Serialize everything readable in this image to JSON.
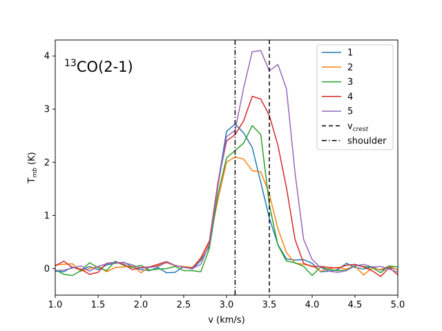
{
  "chart_data": {
    "type": "line",
    "annotation": {
      "sup": "13",
      "main": "CO(2-1)"
    },
    "xlabel": "v (km/s)",
    "ylabel": {
      "main": "T",
      "sub": "mb",
      "rest": " (K)"
    },
    "xlim": [
      1.0,
      5.0
    ],
    "ylim": [
      -0.5,
      4.3
    ],
    "xticks": [
      1.0,
      1.5,
      2.0,
      2.5,
      3.0,
      3.5,
      4.0,
      4.5,
      5.0
    ],
    "xtick_labels": [
      "1.0",
      "1.5",
      "2.0",
      "2.5",
      "3.0",
      "3.5",
      "4.0",
      "4.5",
      "5.0"
    ],
    "yticks": [
      0,
      1,
      2,
      3,
      4
    ],
    "ytick_labels": [
      "0",
      "1",
      "2",
      "3",
      "4"
    ],
    "x": [
      1.0,
      1.1,
      1.2,
      1.3,
      1.4,
      1.5,
      1.6,
      1.7,
      1.8,
      1.9,
      2.0,
      2.1,
      2.2,
      2.3,
      2.4,
      2.5,
      2.6,
      2.7,
      2.8,
      2.9,
      3.0,
      3.1,
      3.2,
      3.3,
      3.4,
      3.5,
      3.6,
      3.7,
      3.8,
      3.9,
      4.0,
      4.1,
      4.2,
      4.3,
      4.4,
      4.5,
      4.6,
      4.7,
      4.8,
      4.9,
      5.0
    ],
    "series": [
      {
        "name": "1",
        "color": "#1f77b4",
        "values": [
          -0.05,
          -0.06,
          0.03,
          -0.03,
          0.04,
          -0.02,
          0.07,
          0.1,
          0.12,
          0.03,
          -0.02,
          -0.04,
          0.02,
          -0.08,
          -0.07,
          0.04,
          -0.01,
          0.15,
          0.42,
          1.6,
          2.58,
          2.72,
          2.55,
          2.28,
          1.62,
          0.95,
          0.45,
          0.18,
          0.16,
          0.17,
          0.1,
          -0.06,
          -0.05,
          -0.02,
          0.1,
          0.02,
          -0.01,
          0.03,
          -0.03,
          0.02,
          -0.02
        ]
      },
      {
        "name": "2",
        "color": "#ff7f0e",
        "values": [
          0.07,
          0.08,
          0.09,
          -0.05,
          0.0,
          0.04,
          -0.06,
          0.02,
          0.03,
          0.05,
          -0.08,
          0.03,
          0.06,
          0.11,
          0.05,
          0.04,
          0.02,
          0.18,
          0.5,
          1.3,
          2.0,
          2.1,
          2.06,
          1.84,
          1.82,
          1.4,
          0.75,
          0.3,
          0.1,
          0.08,
          0.05,
          -0.05,
          0.0,
          0.02,
          -0.01,
          0.05,
          -0.12,
          0.01,
          -0.02,
          0.05,
          -0.03
        ]
      },
      {
        "name": "3",
        "color": "#2ca02c",
        "values": [
          -0.02,
          -0.11,
          -0.13,
          -0.04,
          0.11,
          0.02,
          -0.04,
          0.14,
          0.06,
          0.02,
          0.06,
          -0.03,
          -0.01,
          0.0,
          0.04,
          -0.04,
          -0.04,
          -0.06,
          0.38,
          1.4,
          2.08,
          2.22,
          2.36,
          2.69,
          2.52,
          1.2,
          0.44,
          0.14,
          0.11,
          0.04,
          -0.13,
          0.03,
          -0.02,
          -0.04,
          -0.03,
          0.06,
          0.04,
          0.02,
          -0.08,
          0.05,
          0.03
        ]
      },
      {
        "name": "4",
        "color": "#d62728",
        "values": [
          0.05,
          0.14,
          0.02,
          -0.01,
          -0.11,
          -0.07,
          0.1,
          0.12,
          0.08,
          -0.02,
          0.02,
          0.03,
          0.08,
          0.13,
          0.06,
          0.02,
          0.01,
          0.2,
          0.52,
          1.62,
          2.4,
          2.52,
          2.78,
          3.24,
          3.19,
          2.88,
          2.32,
          1.52,
          0.55,
          0.1,
          0.04,
          0.04,
          0.02,
          0.01,
          0.06,
          0.08,
          0.03,
          -0.04,
          -0.15,
          0.02,
          -0.12
        ]
      },
      {
        "name": "5",
        "color": "#9467bd",
        "values": [
          -0.04,
          -0.03,
          0.01,
          0.05,
          -0.05,
          0.04,
          0.09,
          0.12,
          0.11,
          0.07,
          0.01,
          0.02,
          0.04,
          0.12,
          0.06,
          0.02,
          0.0,
          0.08,
          0.46,
          1.56,
          2.48,
          2.6,
          3.4,
          4.08,
          4.1,
          3.72,
          3.84,
          3.38,
          1.8,
          0.55,
          0.17,
          0.02,
          -0.05,
          -0.07,
          -0.04,
          0.05,
          0.08,
          0.03,
          0.04,
          -0.01,
          -0.07
        ]
      }
    ],
    "vlines": [
      {
        "name": "shoulder",
        "x": 3.1,
        "style": "dashdot"
      },
      {
        "name": "crest",
        "x": 3.5,
        "style": "dashed"
      }
    ],
    "legend": {
      "position": "top-right",
      "entries": [
        {
          "label": "1",
          "color": "#1f77b4",
          "style": "solid"
        },
        {
          "label": "2",
          "color": "#ff7f0e",
          "style": "solid"
        },
        {
          "label": "3",
          "color": "#2ca02c",
          "style": "solid"
        },
        {
          "label": "4",
          "color": "#d62728",
          "style": "solid"
        },
        {
          "label": "5",
          "color": "#9467bd",
          "style": "solid"
        },
        {
          "label": "v",
          "sub": "crest",
          "color": "#000000",
          "style": "dashed"
        },
        {
          "label": "shoulder",
          "color": "#000000",
          "style": "dashdot"
        }
      ]
    }
  }
}
